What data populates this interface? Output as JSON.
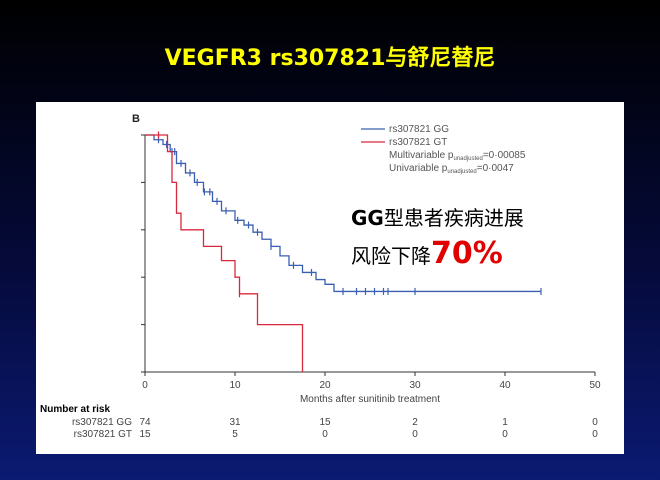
{
  "slide_title": "VEGFR3 rs307821与舒尼替尼",
  "callout": {
    "line1_bold": "GG",
    "line1_rest": "型患者疾病进展",
    "line2_text": "风险下降",
    "line2_pct": "70%"
  },
  "colors": {
    "title": "#ffff00",
    "gg": "#3b5fb0",
    "gt": "#d9283c",
    "callout_pct": "#e00000"
  },
  "chart_data": {
    "type": "line",
    "panel_label": "B",
    "xlabel": "Months after sunitinib treatment",
    "ylabel": "",
    "xlim": [
      0,
      50
    ],
    "ylim": [
      0,
      1
    ],
    "xticks": [
      0,
      10,
      20,
      30,
      40,
      50
    ],
    "grid": false,
    "legend_position": "top-right",
    "series": [
      {
        "name": "rs307821 GG",
        "color": "#3b5fb0",
        "x": [
          0,
          1,
          2,
          2.8,
          3.5,
          4.5,
          5.5,
          6.5,
          7.5,
          8.5,
          10,
          11,
          12,
          13,
          14,
          15,
          16,
          17.5,
          19,
          20,
          21,
          22,
          44
        ],
        "y": [
          1.0,
          0.98,
          0.96,
          0.93,
          0.88,
          0.84,
          0.8,
          0.76,
          0.72,
          0.68,
          0.64,
          0.62,
          0.59,
          0.56,
          0.53,
          0.49,
          0.45,
          0.42,
          0.39,
          0.37,
          0.34,
          0.34,
          0.34
        ],
        "censor_x": [
          1.5,
          2.4,
          3,
          3.3,
          4,
          5,
          5.8,
          6.6,
          7.2,
          8,
          9,
          10.3,
          11.5,
          12.5,
          14,
          16.5,
          18.5,
          22,
          23.5,
          24.5,
          25.5,
          26.5,
          27,
          30,
          44
        ]
      },
      {
        "name": "rs307821 GT",
        "color": "#d9283c",
        "x": [
          0,
          2.5,
          3,
          3.5,
          4,
          6.5,
          8.5,
          10,
          10.5,
          12.5,
          17.5
        ],
        "y": [
          1.0,
          0.93,
          0.8,
          0.67,
          0.6,
          0.53,
          0.47,
          0.4,
          0.33,
          0.2,
          0.0
        ],
        "censor_x": [
          1.5,
          10.5
        ]
      }
    ],
    "annotations": [
      {
        "label": "Multivariable p",
        "subscript": "unadjusted",
        "value": "=0·00085"
      },
      {
        "label": "Univariable p",
        "subscript": "unadjusted",
        "value": "=0·0047"
      }
    ],
    "risk_table": {
      "title": "Number at risk",
      "timepoints": [
        0,
        10,
        20,
        30,
        40,
        50
      ],
      "rows": [
        {
          "label": "rs307821 GG",
          "values": [
            "74",
            "31",
            "15",
            "2",
            "1",
            "0"
          ]
        },
        {
          "label": "rs307821 GT",
          "values": [
            "15",
            "5",
            "0",
            "0",
            "0",
            "0"
          ]
        }
      ]
    }
  }
}
